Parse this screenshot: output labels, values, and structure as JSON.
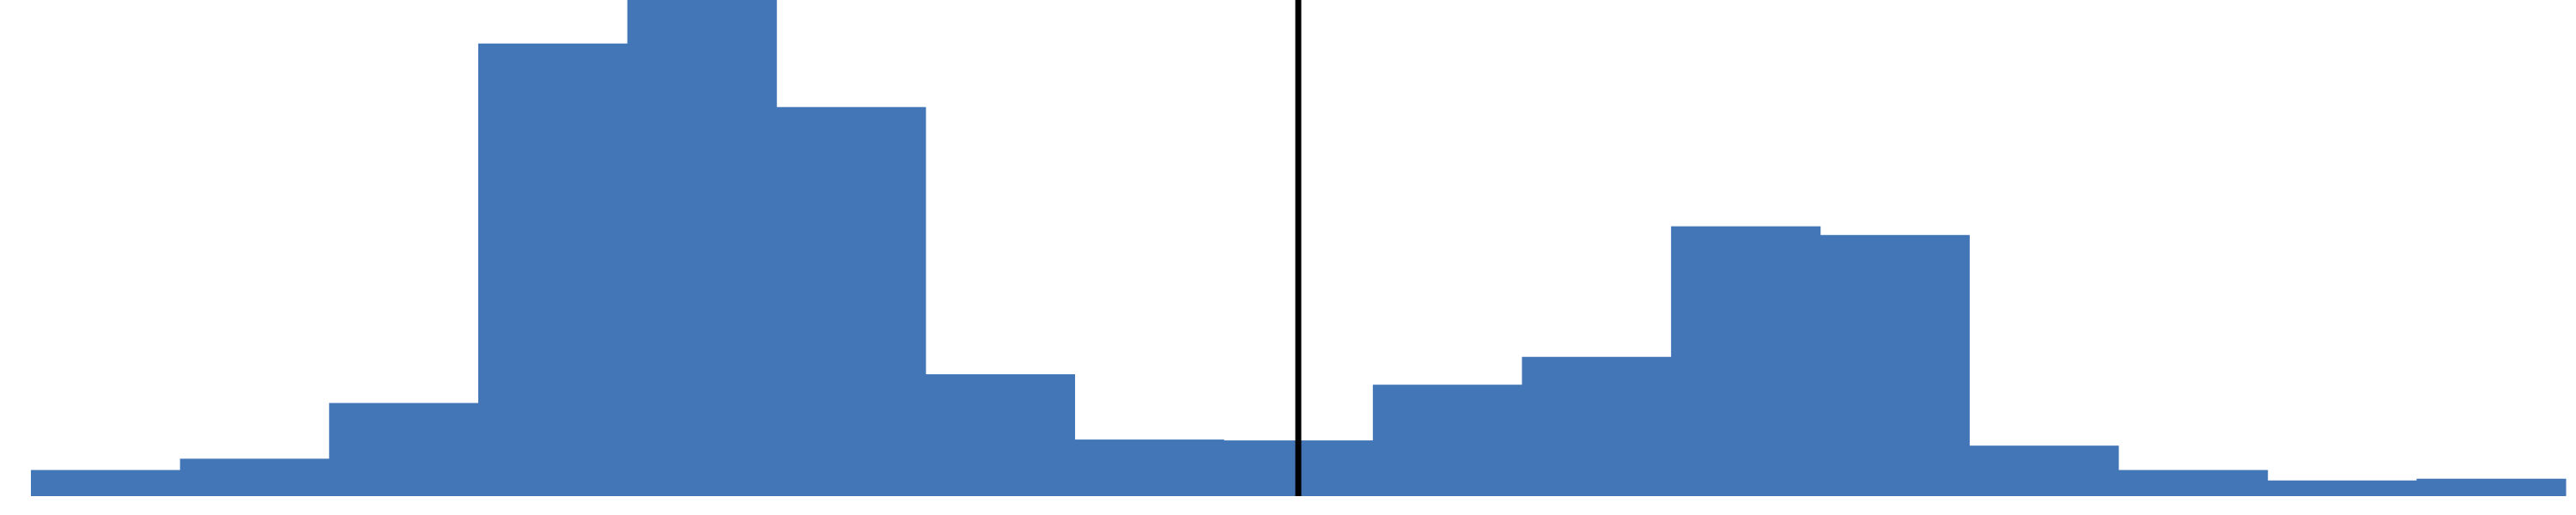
{
  "chart_data": {
    "type": "bar",
    "subtype": "histogram",
    "title": "",
    "xlabel": "",
    "ylabel": "",
    "axes_visible": false,
    "grid": false,
    "legend": "none",
    "bin_count": 17,
    "values": [
      30,
      43,
      107,
      520,
      570,
      447,
      140,
      65,
      64,
      128,
      160,
      310,
      300,
      58,
      30,
      18,
      20
    ],
    "ylim": [
      0,
      570
    ],
    "reference_line": {
      "bin_position": 8.5,
      "color": "#000000"
    },
    "colors": {
      "bar": "#4276B7",
      "background": "#ffffff",
      "reference_line": "#000000"
    }
  }
}
